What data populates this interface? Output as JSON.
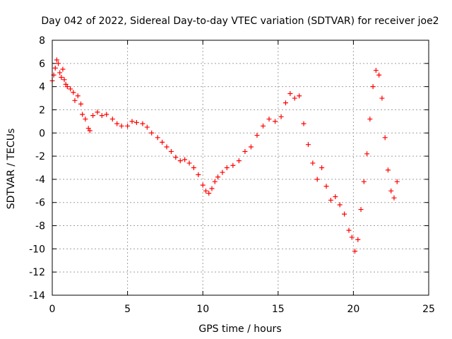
{
  "chart_data": {
    "type": "scatter",
    "title": "Day 042 of 2022, Sidereal Day-to-day VTEC variation (SDTVAR) for receiver joe2",
    "xlabel": "GPS time / hours",
    "ylabel": "SDTVAR / TECUs",
    "xlim": [
      0,
      25
    ],
    "ylim": [
      -14,
      8
    ],
    "xticks": [
      0,
      5,
      10,
      15,
      20,
      25
    ],
    "yticks": [
      -14,
      -12,
      -10,
      -8,
      -6,
      -4,
      -2,
      0,
      2,
      4,
      6,
      8
    ],
    "grid": true,
    "marker": "+",
    "color": "#ff0000",
    "series": [
      {
        "name": "SDTVAR",
        "x": [
          0.0,
          0.1,
          0.2,
          0.3,
          0.4,
          0.5,
          0.6,
          0.7,
          0.8,
          0.9,
          1.0,
          1.2,
          1.4,
          1.5,
          1.7,
          1.9,
          2.0,
          2.2,
          2.4,
          2.5,
          2.7,
          3.0,
          3.3,
          3.6,
          4.0,
          4.3,
          4.6,
          5.0,
          5.3,
          5.6,
          6.0,
          6.3,
          6.6,
          7.0,
          7.3,
          7.6,
          7.9,
          8.2,
          8.5,
          8.8,
          9.1,
          9.4,
          9.7,
          10.0,
          10.2,
          10.4,
          10.6,
          10.8,
          11.0,
          11.3,
          11.6,
          12.0,
          12.4,
          12.8,
          13.2,
          13.6,
          14.0,
          14.4,
          14.8,
          15.2,
          15.5,
          15.8,
          16.1,
          16.4,
          16.7,
          17.0,
          17.3,
          17.6,
          17.9,
          18.2,
          18.5,
          18.8,
          19.1,
          19.4,
          19.7,
          19.9,
          20.1,
          20.3,
          20.5,
          20.7,
          20.9,
          21.1,
          21.3,
          21.5,
          21.7,
          21.9,
          22.1,
          22.3,
          22.5,
          22.7,
          22.9
        ],
        "y": [
          4.5,
          5.0,
          5.6,
          6.3,
          6.0,
          5.2,
          4.8,
          5.5,
          4.6,
          4.2,
          4.0,
          3.8,
          3.5,
          2.8,
          3.2,
          2.5,
          1.6,
          1.2,
          0.4,
          0.2,
          1.5,
          1.8,
          1.5,
          1.6,
          1.2,
          0.8,
          0.6,
          0.6,
          1.0,
          0.9,
          0.8,
          0.5,
          0.0,
          -0.4,
          -0.8,
          -1.2,
          -1.6,
          -2.1,
          -2.4,
          -2.3,
          -2.6,
          -3.0,
          -3.6,
          -4.5,
          -5.0,
          -5.2,
          -4.8,
          -4.2,
          -3.8,
          -3.4,
          -3.0,
          -2.8,
          -2.4,
          -1.6,
          -1.2,
          -0.2,
          0.6,
          1.2,
          1.0,
          1.4,
          2.6,
          3.4,
          3.0,
          3.2,
          0.8,
          -1.0,
          -2.6,
          -4.0,
          -3.0,
          -4.6,
          -5.8,
          -5.5,
          -6.2,
          -7.0,
          -8.4,
          -9.0,
          -10.2,
          -9.2,
          -6.6,
          -4.2,
          -1.8,
          1.2,
          4.0,
          5.4,
          5.0,
          3.0,
          -0.4,
          -3.2,
          -5.0,
          -5.6,
          -4.2
        ]
      }
    ]
  }
}
